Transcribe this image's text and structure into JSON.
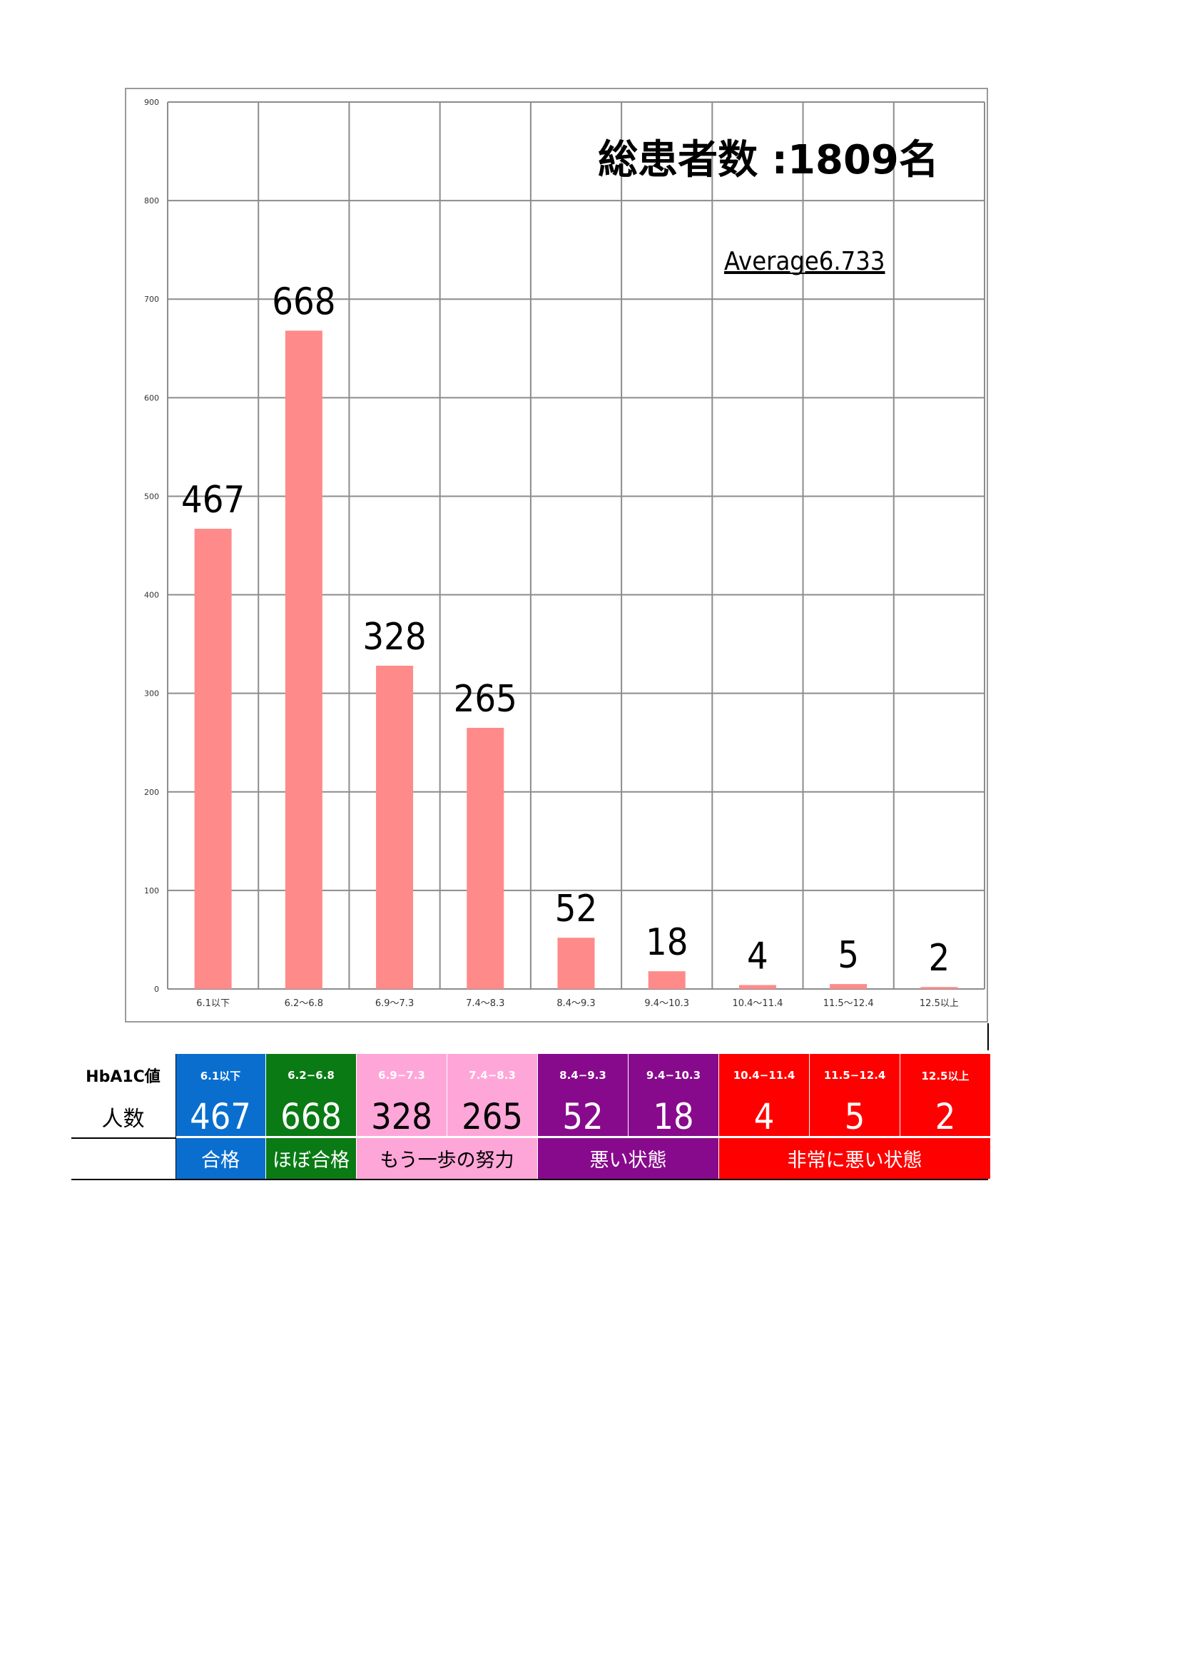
{
  "chart_data": {
    "type": "bar",
    "categories": [
      "6.1以下",
      "6.2〜6.8",
      "6.9〜7.3",
      "7.4〜8.3",
      "8.4〜9.3",
      "9.4〜10.3",
      "10.4〜11.4",
      "11.5〜12.4",
      "12.5以上"
    ],
    "values": [
      467,
      668,
      328,
      265,
      52,
      18,
      4,
      5,
      2
    ],
    "ylim": [
      0,
      900
    ],
    "yticks": [
      0,
      100,
      200,
      300,
      400,
      500,
      600,
      700,
      800,
      900
    ],
    "grid": true,
    "bar_color": "#ff8a8a",
    "title": "総患者数 :1809名",
    "annotation": "Average6.733"
  },
  "table": {
    "header_label": "HbA1C値",
    "count_label": "人数",
    "columns": [
      {
        "range": "6.1以下",
        "count": "467",
        "color": "#0a6ecf"
      },
      {
        "range": "6.2−6.8",
        "count": "668",
        "color": "#0a7a14"
      },
      {
        "range": "6.9−7.3",
        "count": "328",
        "color": "#ffa6d9"
      },
      {
        "range": "7.4−8.3",
        "count": "265",
        "color": "#ffa6d9"
      },
      {
        "range": "8.4−9.3",
        "count": "52",
        "color": "#880a8c"
      },
      {
        "range": "9.4−10.3",
        "count": "18",
        "color": "#880a8c"
      },
      {
        "range": "10.4−11.4",
        "count": "4",
        "color": "#ff0000"
      },
      {
        "range": "11.5−12.4",
        "count": "5",
        "color": "#ff0000"
      },
      {
        "range": "12.5以上",
        "count": "2",
        "color": "#ff0000"
      }
    ],
    "categories": [
      {
        "label": "合格",
        "span": 1,
        "color": "#0a6ecf"
      },
      {
        "label": "ほぼ合格",
        "span": 1,
        "color": "#0a7a14"
      },
      {
        "label": "もう一歩の努力",
        "span": 2,
        "color": "#ffa6d9"
      },
      {
        "label": "悪い状態",
        "span": 2,
        "color": "#880a8c"
      },
      {
        "label": "非常に悪い状態",
        "span": 3,
        "color": "#ff0000"
      }
    ]
  }
}
